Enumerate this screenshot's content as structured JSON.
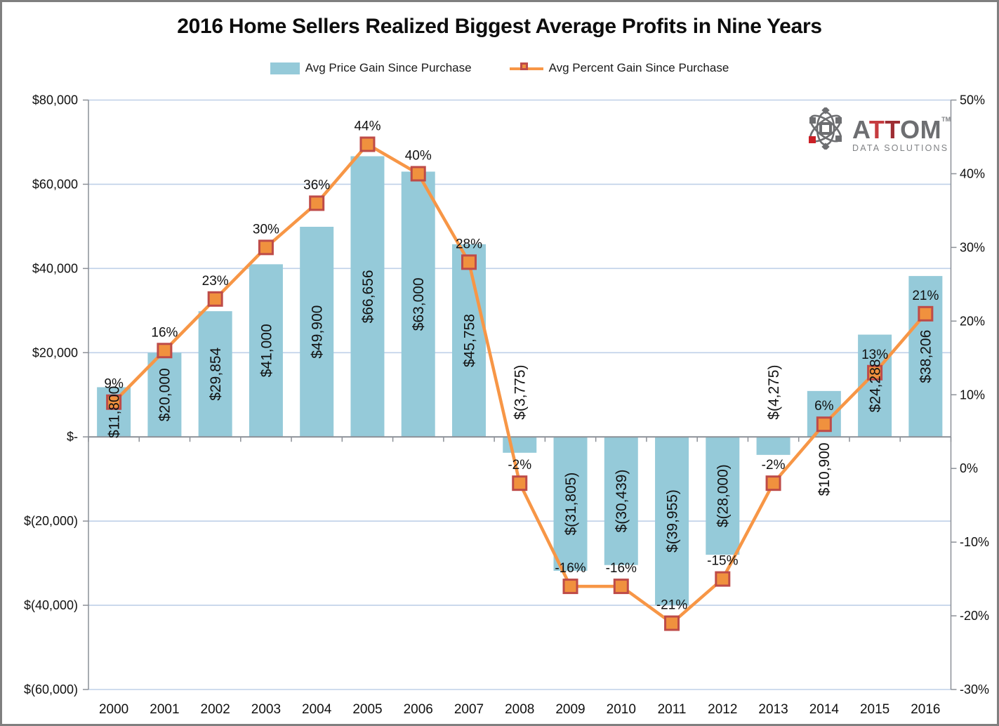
{
  "title": "2016 Home Sellers Realized Biggest Average Profits in Nine Years",
  "logo": {
    "part_a": "A",
    "part_t1": "T",
    "part_t2": "T",
    "part_om": "OM",
    "trademark": "TM",
    "subtitle": "DATA SOLUTIONS",
    "gray": "#6d6e71",
    "red_light": "#c63c40",
    "red_dark": "#9e2d33",
    "sub_gray": "#808285"
  },
  "chart_data": {
    "type": "combo-bar-line",
    "categories": [
      "2000",
      "2001",
      "2002",
      "2003",
      "2004",
      "2005",
      "2006",
      "2007",
      "2008",
      "2009",
      "2010",
      "2011",
      "2012",
      "2013",
      "2014",
      "2015",
      "2016"
    ],
    "series": [
      {
        "name": "Avg Price Gain Since Purchase",
        "type": "bar",
        "axis": "left",
        "color": "#95cad9",
        "values": [
          11800,
          20000,
          29854,
          41000,
          49900,
          66656,
          63000,
          45758,
          -3775,
          -31805,
          -30439,
          -39955,
          -28000,
          -4275,
          10900,
          24288,
          38206
        ],
        "labels": [
          "$11,800",
          "$20,000",
          "$29,854",
          "$41,000",
          "$49,900",
          "$66,656",
          "$63,000",
          "$45,758",
          "$(3,775)",
          "$(31,805)",
          "$(30,439)",
          "$(39,955)",
          "$(28,000)",
          "$(4,275)",
          "$10,900",
          "$24,288",
          "$38,206"
        ],
        "label_placement": [
          "center",
          "center",
          "center",
          "center",
          "center",
          "center",
          "center",
          "center",
          "above_axis",
          "center",
          "center",
          "center",
          "center",
          "above_axis",
          "below_axis",
          "center",
          "center"
        ]
      },
      {
        "name": "Avg Percent Gain Since Purchase",
        "type": "line",
        "axis": "right",
        "color": "#f79646",
        "marker_fill": "#f0913e",
        "marker_stroke": "#be4b48",
        "values": [
          9,
          16,
          23,
          30,
          36,
          44,
          40,
          28,
          -2,
          -16,
          -16,
          -21,
          -15,
          -2,
          6,
          13,
          21
        ],
        "labels": [
          "9%",
          "16%",
          "23%",
          "30%",
          "36%",
          "44%",
          "40%",
          "28%",
          "-2%",
          "-16%",
          "-16%",
          "-21%",
          "-15%",
          "-2%",
          "6%",
          "13%",
          "21%"
        ]
      }
    ],
    "left_axis": {
      "min": -60000,
      "max": 80000,
      "tick_step": 20000,
      "tick_labels": [
        "$80,000",
        "$60,000",
        "$40,000",
        "$20,000",
        "$-",
        "$(20,000)",
        "$(40,000)",
        "$(60,000)"
      ],
      "tick_values": [
        80000,
        60000,
        40000,
        20000,
        0,
        -20000,
        -40000,
        -60000
      ]
    },
    "right_axis": {
      "min": -30,
      "max": 50,
      "tick_step": 10,
      "tick_labels": [
        "50%",
        "40%",
        "30%",
        "20%",
        "10%",
        "0%",
        "-10%",
        "-20%",
        "-30%"
      ],
      "tick_values": [
        50,
        40,
        30,
        20,
        10,
        0,
        -10,
        -20,
        -30
      ]
    },
    "style": {
      "grid_color": "#bfd0e8",
      "axis_color": "#8c9097",
      "label_color": "#111111"
    },
    "grid": true,
    "legend_position": "top"
  }
}
